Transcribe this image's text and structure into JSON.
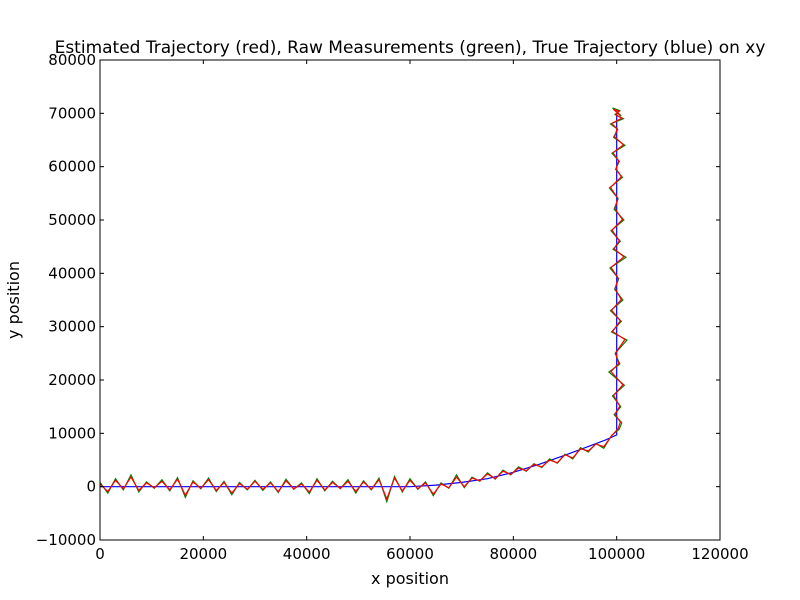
{
  "chart_data": {
    "type": "line",
    "title": "Estimated Trajectory (red), Raw Measurements (green), True Trajectory (blue) on xy",
    "xlabel": "x position",
    "ylabel": "y position",
    "xlim": [
      0,
      120000
    ],
    "ylim": [
      -10000,
      80000
    ],
    "xticks": [
      0,
      20000,
      40000,
      60000,
      80000,
      100000,
      120000
    ],
    "yticks": [
      -10000,
      0,
      10000,
      20000,
      30000,
      40000,
      50000,
      60000,
      70000,
      80000
    ],
    "xtick_labels": [
      "0",
      "20000",
      "40000",
      "60000",
      "80000",
      "100000",
      "120000"
    ],
    "ytick_labels": [
      "−10000",
      "0",
      "10000",
      "20000",
      "30000",
      "40000",
      "50000",
      "60000",
      "70000",
      "80000"
    ],
    "grid": false,
    "legend": "none",
    "series": [
      {
        "color": "#0000ff",
        "x": [
          0,
          20000,
          40000,
          60000,
          65000,
          70000,
          75000,
          80000,
          85000,
          90000,
          95000,
          98000,
          100000,
          100000,
          100000,
          100000,
          100000,
          100000,
          100000,
          100000
        ],
        "y": [
          0,
          0,
          0,
          0,
          300,
          800,
          1500,
          2700,
          4200,
          5900,
          7700,
          8800,
          9700,
          15000,
          25000,
          35000,
          45000,
          55000,
          65000,
          70000
        ]
      },
      {
        "color": "#008000",
        "x": [
          0,
          1500,
          3000,
          4500,
          6000,
          7500,
          9000,
          10500,
          12000,
          13500,
          15000,
          16500,
          18000,
          19500,
          21000,
          22500,
          24000,
          25500,
          27000,
          28500,
          30000,
          31500,
          33000,
          34500,
          36000,
          37500,
          39000,
          40500,
          42000,
          43500,
          45000,
          46500,
          48000,
          49500,
          51000,
          52500,
          54000,
          55500,
          57000,
          58500,
          60000,
          61500,
          63000,
          64500,
          66000,
          67500,
          69000,
          70500,
          72000,
          73500,
          75000,
          76500,
          78000,
          79500,
          81000,
          82500,
          84000,
          85500,
          87000,
          88500,
          90000,
          91500,
          93000,
          94500,
          96000,
          97500,
          99000,
          100500,
          101000,
          99500,
          100800,
          99200,
          101500,
          98500,
          100600,
          99700,
          102000,
          99000,
          100900,
          98800,
          101200,
          99600,
          100400,
          98700,
          101800,
          99300,
          100700,
          98900,
          101400,
          99500,
          100300,
          98600,
          101100,
          99800,
          100500,
          99100,
          101600,
          99400,
          100200,
          98800,
          101300,
          99700,
          100600,
          99200,
          100900
        ],
        "y": [
          800,
          -1200,
          1500,
          -600,
          2200,
          -1000,
          900,
          -300,
          1300,
          -800,
          1700,
          -2000,
          1100,
          -400,
          1600,
          -900,
          1000,
          -1500,
          800,
          -600,
          1200,
          -700,
          900,
          -1100,
          1400,
          -500,
          700,
          -1300,
          1500,
          -800,
          1000,
          -400,
          1300,
          -1200,
          1100,
          -600,
          1600,
          -2800,
          1900,
          -1000,
          1500,
          -500,
          900,
          -1700,
          700,
          -300,
          2200,
          -200,
          1800,
          1000,
          2600,
          1400,
          3100,
          2200,
          3700,
          2900,
          4300,
          3600,
          5200,
          4400,
          6100,
          5200,
          7300,
          6500,
          8100,
          7200,
          9600,
          10800,
          12000,
          13500,
          15000,
          17000,
          19000,
          21500,
          23000,
          25000,
          27500,
          29000,
          31000,
          33000,
          35000,
          37000,
          39000,
          41000,
          43000,
          44500,
          46000,
          48000,
          50000,
          52000,
          54000,
          56000,
          58000,
          59500,
          61000,
          62500,
          64000,
          65500,
          67000,
          68000,
          69000,
          69800,
          70500,
          71000,
          69500
        ]
      },
      {
        "color": "#ff0000",
        "x": [
          0,
          1500,
          3000,
          4500,
          6000,
          7500,
          9000,
          10500,
          12000,
          13500,
          15000,
          16500,
          18000,
          19500,
          21000,
          22500,
          24000,
          25500,
          27000,
          28500,
          30000,
          31500,
          33000,
          34500,
          36000,
          37500,
          39000,
          40500,
          42000,
          43500,
          45000,
          46500,
          48000,
          49500,
          51000,
          52500,
          54000,
          55500,
          57000,
          58500,
          60000,
          61500,
          63000,
          64500,
          66000,
          67500,
          69000,
          70500,
          72000,
          73500,
          75000,
          76500,
          78000,
          79500,
          81000,
          82500,
          84000,
          85500,
          87000,
          88500,
          90000,
          91500,
          93000,
          94500,
          96000,
          97500,
          99000,
          100300,
          100700,
          99700,
          100600,
          99400,
          101200,
          98900,
          100400,
          99800,
          101600,
          99200,
          100700,
          99000,
          100900,
          99700,
          100300,
          98900,
          101400,
          99500,
          100500,
          99100,
          101100,
          99700,
          100200,
          98800,
          100900,
          99900,
          100400,
          99300,
          101300,
          99600,
          100100,
          99000,
          101000,
          99800,
          100500,
          99400,
          100700
        ],
        "y": [
          500,
          -900,
          1200,
          -400,
          1800,
          -700,
          700,
          -200,
          1000,
          -600,
          1400,
          -1600,
          900,
          -300,
          1300,
          -700,
          800,
          -1200,
          600,
          -500,
          1000,
          -500,
          700,
          -900,
          1100,
          -400,
          500,
          -1000,
          1200,
          -600,
          800,
          -300,
          1000,
          -900,
          900,
          -500,
          1300,
          -2300,
          1600,
          -800,
          1200,
          -400,
          700,
          -1400,
          500,
          -200,
          1800,
          0,
          1600,
          1100,
          2400,
          1500,
          2900,
          2300,
          3500,
          3000,
          4200,
          3700,
          5000,
          4500,
          6000,
          5400,
          7100,
          6700,
          8000,
          7500,
          9500,
          10900,
          12100,
          13600,
          15100,
          17100,
          19100,
          21600,
          23100,
          25100,
          27600,
          29100,
          31100,
          33100,
          35100,
          37100,
          39100,
          41100,
          43100,
          44600,
          46100,
          48100,
          50100,
          52100,
          54100,
          56100,
          58100,
          59600,
          61100,
          62600,
          64100,
          65600,
          67100,
          68100,
          69100,
          69700,
          70400,
          70700,
          69600
        ]
      }
    ]
  }
}
